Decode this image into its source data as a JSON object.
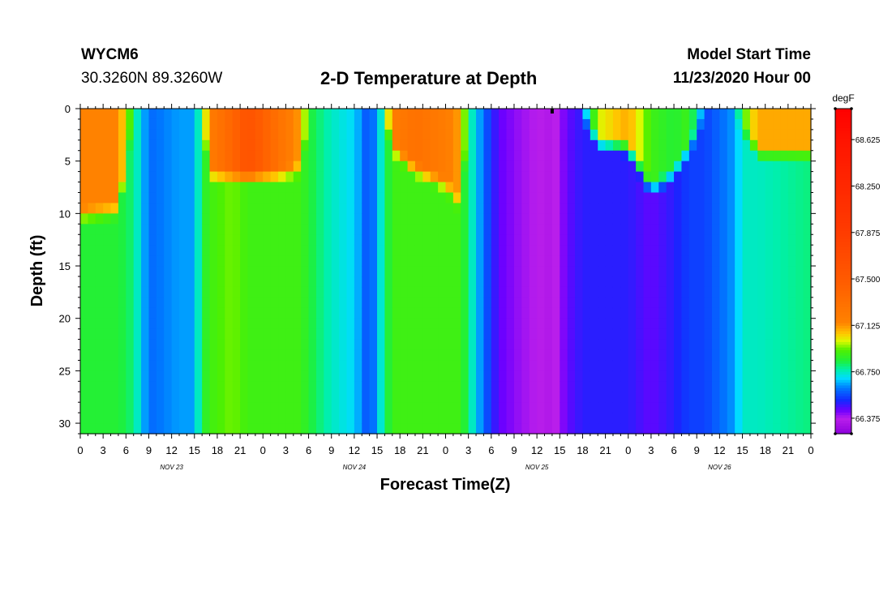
{
  "header": {
    "station_id": "WYCM6",
    "coords": "30.3260N 89.3260W",
    "title": "2-D Temperature at Depth",
    "model_label": "Model Start Time",
    "model_time": "11/23/2020 Hour 00"
  },
  "chart_data": {
    "type": "heatmap",
    "title": "2-D Temperature at Depth",
    "xlabel": "Forecast Time(Z)",
    "ylabel": "Depth (ft)",
    "x_tick_labels": [
      "0",
      "3",
      "6",
      "9",
      "12",
      "15",
      "18",
      "21",
      "0",
      "3",
      "6",
      "9",
      "12",
      "15",
      "18",
      "21",
      "0",
      "3",
      "6",
      "9",
      "12",
      "15",
      "18",
      "21",
      "0",
      "3",
      "6",
      "9",
      "12",
      "15",
      "18",
      "21",
      "0"
    ],
    "x_range_hours": [
      0,
      96
    ],
    "day_labels": [
      {
        "label": "NOV 23",
        "hour": 12
      },
      {
        "label": "NOV 24",
        "hour": 36
      },
      {
        "label": "NOV 25",
        "hour": 60
      },
      {
        "label": "NOV 26",
        "hour": 84
      }
    ],
    "y_ticks": [
      0,
      5,
      10,
      15,
      20,
      25,
      30
    ],
    "y_tick_labels": [
      "0",
      "5",
      "10",
      "15",
      "20",
      "25",
      "30"
    ],
    "y_range_ft": [
      0,
      31
    ],
    "colorbar": {
      "unit": "degF",
      "min": 66.25,
      "max": 68.875,
      "labels": [
        "68.625",
        "68.250",
        "67.875",
        "67.500",
        "67.125",
        "66.750",
        "66.375"
      ],
      "label_values": [
        68.625,
        68.25,
        67.875,
        67.5,
        67.125,
        66.75,
        66.375
      ]
    },
    "marker_hour": 62,
    "profiles": [
      {
        "hour": 0,
        "surface": 67.15,
        "bottom": 66.85,
        "mix_depth": 9.5
      },
      {
        "hour": 5,
        "surface": 67.15,
        "bottom": 66.85,
        "mix_depth": 9.0
      },
      {
        "hour": 7,
        "surface": 66.85,
        "bottom": 66.8,
        "mix_depth": 0
      },
      {
        "hour": 9,
        "surface": 66.6,
        "bottom": 66.6,
        "mix_depth": 0
      },
      {
        "hour": 13,
        "surface": 66.65,
        "bottom": 66.65,
        "mix_depth": 0
      },
      {
        "hour": 15,
        "surface": 66.65,
        "bottom": 66.65,
        "mix_depth": 0
      },
      {
        "hour": 16,
        "surface": 66.85,
        "bottom": 66.85,
        "mix_depth": 0
      },
      {
        "hour": 17,
        "surface": 67.2,
        "bottom": 66.9,
        "mix_depth": 5.5
      },
      {
        "hour": 20,
        "surface": 67.4,
        "bottom": 66.95,
        "mix_depth": 5.5
      },
      {
        "hour": 22,
        "surface": 67.6,
        "bottom": 66.9,
        "mix_depth": 5.5
      },
      {
        "hour": 26,
        "surface": 67.3,
        "bottom": 66.9,
        "mix_depth": 5.5
      },
      {
        "hour": 29,
        "surface": 67.1,
        "bottom": 66.9,
        "mix_depth": 5.0
      },
      {
        "hour": 30,
        "surface": 66.85,
        "bottom": 66.85,
        "mix_depth": 0
      },
      {
        "hour": 33,
        "surface": 66.75,
        "bottom": 66.75,
        "mix_depth": 0
      },
      {
        "hour": 36,
        "surface": 66.7,
        "bottom": 66.7,
        "mix_depth": 0
      },
      {
        "hour": 38,
        "surface": 66.55,
        "bottom": 66.55,
        "mix_depth": 0
      },
      {
        "hour": 40,
        "surface": 66.85,
        "bottom": 66.8,
        "mix_depth": 0
      },
      {
        "hour": 41,
        "surface": 67.2,
        "bottom": 66.9,
        "mix_depth": 3.0
      },
      {
        "hour": 44,
        "surface": 67.3,
        "bottom": 66.9,
        "mix_depth": 5.0
      },
      {
        "hour": 48,
        "surface": 67.2,
        "bottom": 66.9,
        "mix_depth": 6.5
      },
      {
        "hour": 50,
        "surface": 67.1,
        "bottom": 66.9,
        "mix_depth": 8.5
      },
      {
        "hour": 51,
        "surface": 66.8,
        "bottom": 66.8,
        "mix_depth": 0
      },
      {
        "hour": 53,
        "surface": 66.6,
        "bottom": 66.6,
        "mix_depth": 0
      },
      {
        "hour": 55,
        "surface": 66.45,
        "bottom": 66.45,
        "mix_depth": 0
      },
      {
        "hour": 58,
        "surface": 66.4,
        "bottom": 66.4,
        "mix_depth": 0
      },
      {
        "hour": 62,
        "surface": 66.35,
        "bottom": 66.35,
        "mix_depth": 0
      },
      {
        "hour": 64,
        "surface": 66.45,
        "bottom": 66.45,
        "mix_depth": 0
      },
      {
        "hour": 66,
        "surface": 66.6,
        "bottom": 66.5,
        "mix_depth": 0
      },
      {
        "hour": 68,
        "surface": 67.0,
        "bottom": 66.5,
        "mix_depth": 2.5
      },
      {
        "hour": 72,
        "surface": 67.1,
        "bottom": 66.5,
        "mix_depth": 3.0
      },
      {
        "hour": 75,
        "surface": 66.9,
        "bottom": 66.45,
        "mix_depth": 7.0
      },
      {
        "hour": 78,
        "surface": 66.85,
        "bottom": 66.5,
        "mix_depth": 5.5
      },
      {
        "hour": 80,
        "surface": 66.9,
        "bottom": 66.55,
        "mix_depth": 3.0
      },
      {
        "hour": 82,
        "surface": 66.6,
        "bottom": 66.55,
        "mix_depth": 0
      },
      {
        "hour": 84,
        "surface": 66.6,
        "bottom": 66.6,
        "mix_depth": 0
      },
      {
        "hour": 86,
        "surface": 66.65,
        "bottom": 66.65,
        "mix_depth": 0
      },
      {
        "hour": 87,
        "surface": 66.9,
        "bottom": 66.75,
        "mix_depth": 1.0
      },
      {
        "hour": 89,
        "surface": 67.1,
        "bottom": 66.75,
        "mix_depth": 3.5
      },
      {
        "hour": 96,
        "surface": 67.1,
        "bottom": 66.8,
        "mix_depth": 3.5
      }
    ]
  }
}
